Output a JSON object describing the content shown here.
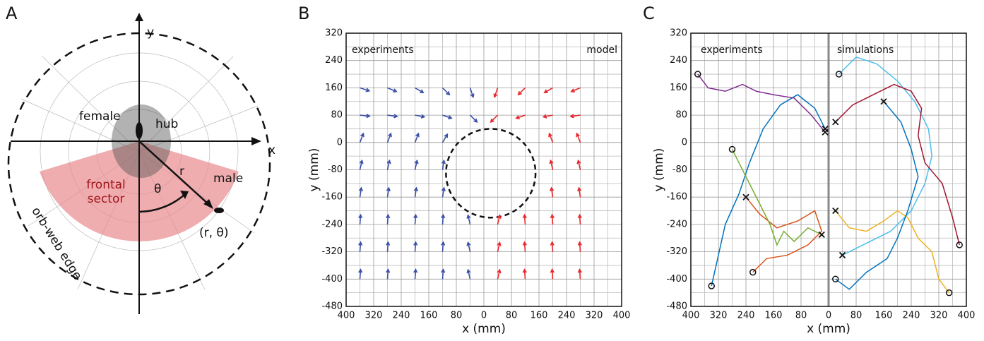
{
  "diagram": {
    "panel_label": "A",
    "axis_x": "x",
    "axis_y": "y",
    "female": "female",
    "hub": "hub",
    "r": "r",
    "theta": "θ",
    "male": "male",
    "frontal_sector": [
      "frontal",
      "sector"
    ],
    "male_position": "(r, θ)",
    "edge": "orb-web edge"
  },
  "chart_data": [
    {
      "type": "quiver",
      "panel_label": "B",
      "xlabel": "x (mm)",
      "ylabel": "y (mm)",
      "xlim": [
        -400,
        400
      ],
      "ylim": [
        -480,
        320
      ],
      "grid": true,
      "xticks": [
        {
          "value": -400,
          "label": "400"
        },
        {
          "value": -320,
          "label": "320"
        },
        {
          "value": -240,
          "label": "240"
        },
        {
          "value": -160,
          "label": "160"
        },
        {
          "value": -80,
          "label": "80"
        },
        0,
        80,
        160,
        240,
        320,
        400
      ],
      "yticks": [
        -480,
        -400,
        -320,
        -240,
        -160,
        -80,
        0,
        80,
        160,
        240,
        320
      ],
      "circle": {
        "cx": 20,
        "cy": -90,
        "r": 130
      },
      "series": [
        {
          "name": "experiments",
          "color": "#3b4fa8",
          "x": [
            -360,
            -280,
            -200,
            -120,
            -40,
            -360,
            -280,
            -200,
            -120,
            -40,
            -360,
            -280,
            -200,
            -120,
            -360,
            -280,
            -200,
            -120,
            -360,
            -280,
            -200,
            -120,
            -360,
            -280,
            -200,
            -120,
            -40,
            -360,
            -280,
            -200,
            -120,
            -40,
            -360,
            -280,
            -200,
            -120,
            -40
          ],
          "y": [
            160,
            160,
            160,
            160,
            160,
            80,
            80,
            80,
            80,
            80,
            0,
            0,
            0,
            0,
            -80,
            -80,
            -80,
            -80,
            -160,
            -160,
            -160,
            -160,
            -240,
            -240,
            -240,
            -240,
            -240,
            -320,
            -320,
            -320,
            -320,
            -320,
            -400,
            -400,
            -400,
            -400,
            -400
          ],
          "u": [
            27,
            26,
            24,
            20,
            9,
            28,
            28,
            27,
            26,
            20,
            10,
            10,
            10,
            14,
            6,
            6,
            6,
            4,
            4,
            4,
            4,
            4,
            2,
            2,
            2,
            2,
            -6,
            2,
            2,
            2,
            2,
            -6,
            2,
            2,
            2,
            2,
            -6
          ],
          "v": [
            -9,
            -11,
            -14,
            -20,
            -27,
            -3,
            -4,
            -5,
            -9,
            -20,
            26,
            26,
            26,
            24,
            27,
            27,
            27,
            27,
            27,
            27,
            27,
            27,
            28,
            28,
            28,
            28,
            27,
            28,
            28,
            28,
            28,
            27,
            28,
            28,
            28,
            28,
            27
          ]
        },
        {
          "name": "model",
          "color": "#e8262b",
          "x": [
            40,
            120,
            200,
            280,
            40,
            120,
            200,
            280,
            200,
            280,
            200,
            280,
            200,
            280,
            40,
            120,
            200,
            280,
            40,
            120,
            200,
            280,
            40,
            120,
            200,
            280
          ],
          "y": [
            160,
            160,
            160,
            160,
            80,
            80,
            80,
            80,
            0,
            0,
            -80,
            -80,
            -160,
            -160,
            -240,
            -240,
            -240,
            -240,
            -320,
            -320,
            -320,
            -320,
            -400,
            -400,
            -400,
            -400
          ],
          "u": [
            -9,
            -20,
            -24,
            -26,
            -20,
            -26,
            -27,
            -28,
            -10,
            -10,
            -6,
            -6,
            -4,
            -4,
            6,
            -2,
            -2,
            -2,
            6,
            -2,
            -2,
            -2,
            6,
            -2,
            -2,
            -2
          ],
          "v": [
            -27,
            -20,
            -14,
            -11,
            -20,
            -9,
            -5,
            -4,
            26,
            26,
            27,
            27,
            27,
            27,
            27,
            28,
            28,
            28,
            27,
            28,
            28,
            28,
            27,
            28,
            28,
            28
          ]
        }
      ]
    },
    {
      "type": "trajectories",
      "panel_label": "C",
      "xlabel": "x (mm)",
      "ylabel": "y (mm)",
      "xlim": [
        -400,
        400
      ],
      "ylim": [
        -480,
        320
      ],
      "grid": true,
      "xticks": [
        {
          "value": -400,
          "label": "400"
        },
        {
          "value": -320,
          "label": "320"
        },
        {
          "value": -240,
          "label": "240"
        },
        {
          "value": -160,
          "label": "160"
        },
        {
          "value": -80,
          "label": "80"
        },
        0,
        80,
        160,
        240,
        320,
        400
      ],
      "yticks": [
        -480,
        -400,
        -320,
        -240,
        -160,
        -80,
        0,
        80,
        160,
        240,
        320
      ],
      "group_labels": [
        "experiments",
        "simulations"
      ],
      "series": [
        {
          "color": "#0072bd",
          "x": [
            -340,
            -320,
            -300,
            -260,
            -230,
            -190,
            -140,
            -90,
            -40,
            -10
          ],
          "y": [
            -420,
            -330,
            -240,
            -150,
            -60,
            40,
            110,
            140,
            100,
            40
          ]
        },
        {
          "color": "#d95319",
          "x": [
            -220,
            -180,
            -120,
            -60,
            -20,
            -40,
            -90,
            -150,
            -200,
            -240
          ],
          "y": [
            -380,
            -340,
            -330,
            -300,
            -260,
            -200,
            -230,
            -250,
            -210,
            -160
          ]
        },
        {
          "color": "#7e2f8e",
          "x": [
            -380,
            -350,
            -300,
            -250,
            -210,
            -160,
            -100,
            -50,
            -10
          ],
          "y": [
            200,
            160,
            150,
            170,
            150,
            140,
            130,
            80,
            30
          ]
        },
        {
          "color": "#77ac30",
          "x": [
            -280,
            -240,
            -200,
            -170,
            -150,
            -130,
            -100,
            -60,
            -20
          ],
          "y": [
            -20,
            -100,
            -180,
            -240,
            -300,
            -260,
            -290,
            -250,
            -270
          ]
        },
        {
          "color": "#4dbeee",
          "x": [
            30,
            80,
            140,
            200,
            250,
            290,
            300,
            280,
            240,
            180,
            100,
            40
          ],
          "y": [
            200,
            250,
            230,
            180,
            120,
            40,
            -40,
            -120,
            -200,
            -260,
            -300,
            -330
          ]
        },
        {
          "color": "#edb120",
          "x": [
            350,
            320,
            300,
            260,
            230,
            200,
            160,
            110,
            60,
            20
          ],
          "y": [
            -440,
            -400,
            -320,
            -280,
            -220,
            -200,
            -230,
            -260,
            -250,
            -200
          ]
        },
        {
          "color": "#a2142f",
          "x": [
            380,
            360,
            330,
            280,
            260,
            270,
            240,
            190,
            130,
            70,
            20
          ],
          "y": [
            -300,
            -220,
            -120,
            -60,
            20,
            100,
            150,
            170,
            140,
            110,
            60
          ]
        },
        {
          "color": "#0072bd",
          "x": [
            20,
            60,
            110,
            170,
            200,
            230,
            260,
            240,
            210,
            160
          ],
          "y": [
            -400,
            -430,
            -380,
            -340,
            -280,
            -200,
            -100,
            -20,
            60,
            120
          ]
        }
      ]
    }
  ]
}
